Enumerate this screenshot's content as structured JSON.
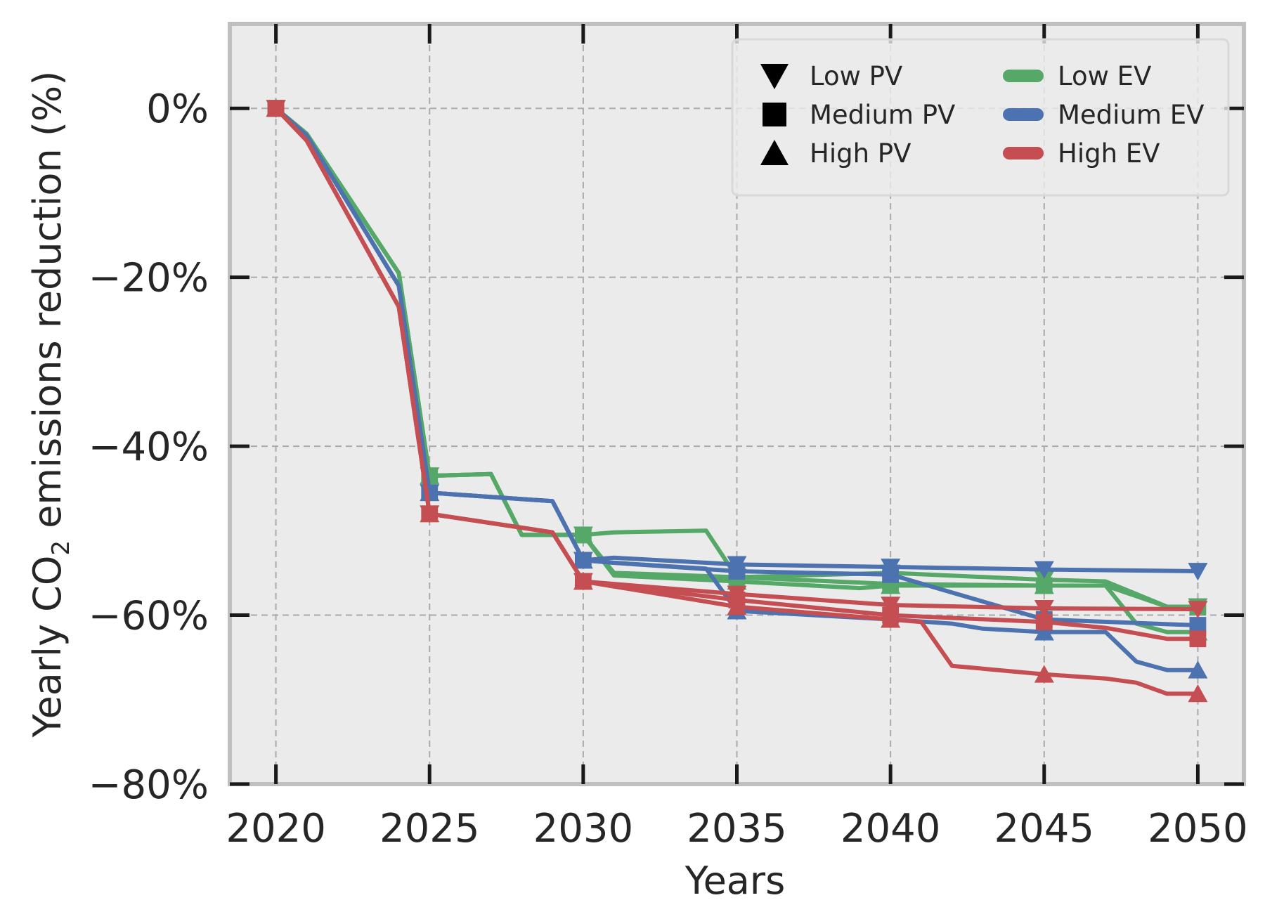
{
  "chart_data": {
    "type": "line",
    "title": "",
    "xlabel": "Years",
    "ylabel_parts": {
      "before": "Yearly CO",
      "sub": "2",
      "after": " emissions reduction (%)"
    },
    "xlim": [
      2018.5,
      2051.5
    ],
    "ylim": [
      -80,
      10
    ],
    "xticks": [
      2020,
      2025,
      2030,
      2035,
      2040,
      2045,
      2050
    ],
    "xtick_labels": [
      "2020",
      "2025",
      "2030",
      "2035",
      "2040",
      "2045",
      "2050"
    ],
    "yticks": [
      0,
      -20,
      -40,
      -60,
      -80
    ],
    "ytick_labels": [
      "0%",
      "−20%",
      "−40%",
      "−60%",
      "−80%"
    ],
    "grid": true,
    "legend_position": "top-right",
    "legend": {
      "markers": [
        {
          "label": "Low PV",
          "marker": "triangle-down"
        },
        {
          "label": "Medium PV",
          "marker": "square"
        },
        {
          "label": "High PV",
          "marker": "triangle-up"
        }
      ],
      "colors": [
        {
          "label": "Low EV",
          "color": "#55a868"
        },
        {
          "label": "Medium EV",
          "color": "#4c72b0"
        },
        {
          "label": "High EV",
          "color": "#c44e52"
        }
      ]
    },
    "colors": {
      "Low EV": "#55a868",
      "Medium EV": "#4c72b0",
      "High EV": "#c44e52"
    },
    "marker_years": [
      2020,
      2025,
      2030,
      2035,
      2040,
      2045,
      2050
    ],
    "series": [
      {
        "name": "Low EV / Low PV",
        "ev": "Low EV",
        "marker": "triangle-down",
        "x": [
          2020,
          2021,
          2024,
          2025,
          2027,
          2028,
          2030,
          2031,
          2034,
          2035,
          2040,
          2045,
          2047,
          2049,
          2050
        ],
        "y": [
          0,
          -3,
          -19.5,
          -43.5,
          -43.3,
          -50.5,
          -50.5,
          -50.2,
          -50.0,
          -55.5,
          -55.0,
          -55.8,
          -56.0,
          -59.0,
          -59.0
        ]
      },
      {
        "name": "Low EV / Medium PV",
        "ev": "Low EV",
        "marker": "square",
        "x": [
          2020,
          2021,
          2024,
          2025,
          2027,
          2028,
          2030,
          2031,
          2035,
          2040,
          2045,
          2047,
          2049,
          2050
        ],
        "y": [
          0,
          -3,
          -19.5,
          -43.5,
          -43.3,
          -50.5,
          -50.5,
          -55.0,
          -55.5,
          -56.3,
          -56.5,
          -56.5,
          -59.0,
          -59.0
        ]
      },
      {
        "name": "Low EV / High PV",
        "ev": "Low EV",
        "marker": "triangle-up",
        "x": [
          2020,
          2021,
          2024,
          2025,
          2027,
          2028,
          2030,
          2031,
          2035,
          2039,
          2040,
          2045,
          2047,
          2048,
          2049,
          2050
        ],
        "y": [
          0,
          -3,
          -19.5,
          -43.5,
          -43.3,
          -50.5,
          -50.5,
          -55.3,
          -56.0,
          -56.8,
          -56.5,
          -56.5,
          -56.5,
          -61.0,
          -62.0,
          -62.0
        ]
      },
      {
        "name": "Medium EV / Low PV",
        "ev": "Medium EV",
        "marker": "triangle-down",
        "x": [
          2020,
          2021,
          2024,
          2025,
          2029,
          2030,
          2031,
          2035,
          2040,
          2045,
          2050
        ],
        "y": [
          0,
          -3.2,
          -21,
          -45.5,
          -46.5,
          -53.5,
          -53.2,
          -54.0,
          -54.3,
          -54.6,
          -54.8
        ]
      },
      {
        "name": "Medium EV / Medium PV",
        "ev": "Medium EV",
        "marker": "square",
        "x": [
          2020,
          2021,
          2024,
          2025,
          2029,
          2030,
          2031,
          2035,
          2040,
          2045,
          2050
        ],
        "y": [
          0,
          -3.2,
          -21,
          -45.5,
          -46.5,
          -53.5,
          -53.8,
          -54.8,
          -55.2,
          -60.5,
          -61.2
        ]
      },
      {
        "name": "Medium EV / High PV",
        "ev": "Medium EV",
        "marker": "triangle-up",
        "x": [
          2020,
          2021,
          2024,
          2025,
          2029,
          2030,
          2031,
          2034,
          2035,
          2040,
          2042,
          2043,
          2045,
          2047,
          2048,
          2049,
          2050
        ],
        "y": [
          0,
          -3.2,
          -21,
          -45.5,
          -46.5,
          -53.5,
          -53.8,
          -54.5,
          -59.5,
          -60.5,
          -61.0,
          -61.6,
          -62.0,
          -62.0,
          -65.5,
          -66.5,
          -66.5
        ]
      },
      {
        "name": "High EV / Low PV",
        "ev": "High EV",
        "marker": "triangle-down",
        "x": [
          2020,
          2021,
          2024,
          2025,
          2029,
          2030,
          2035,
          2040,
          2045,
          2050
        ],
        "y": [
          0,
          -3.8,
          -23.5,
          -48,
          -50.2,
          -56,
          -57.5,
          -58.8,
          -59.2,
          -59.3
        ]
      },
      {
        "name": "High EV / Medium PV",
        "ev": "High EV",
        "marker": "square",
        "x": [
          2020,
          2021,
          2024,
          2025,
          2029,
          2030,
          2035,
          2040,
          2045,
          2047,
          2049,
          2050
        ],
        "y": [
          0,
          -3.8,
          -23.5,
          -48,
          -50.2,
          -56,
          -58.2,
          -60.0,
          -60.8,
          -61.5,
          -62.8,
          -62.8
        ]
      },
      {
        "name": "High EV / High PV",
        "ev": "High EV",
        "marker": "triangle-up",
        "x": [
          2020,
          2021,
          2024,
          2025,
          2029,
          2030,
          2035,
          2040,
          2041,
          2042,
          2045,
          2047,
          2048,
          2049,
          2050
        ],
        "y": [
          0,
          -3.8,
          -23.5,
          -48,
          -50.2,
          -56,
          -59.0,
          -60.5,
          -60.8,
          -66.0,
          -67.0,
          -67.5,
          -68.0,
          -69.3,
          -69.3
        ]
      }
    ]
  }
}
